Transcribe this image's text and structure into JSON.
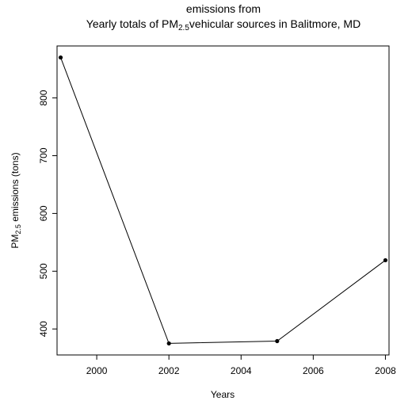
{
  "chart_data": {
    "type": "line",
    "title_line1": "emissions from",
    "title_line2_prefix": "Yearly totals of PM",
    "title_line2_sub": "2.5",
    "title_line2_suffix": "vehicular sources in Balitmore, MD",
    "xlabel": "Years",
    "ylabel_prefix": "PM",
    "ylabel_sub": "2.5",
    "ylabel_suffix": " emissions (tons)",
    "x": [
      1999,
      2002,
      2005,
      2008
    ],
    "y": [
      870,
      375,
      379,
      519
    ],
    "xlim": [
      1998.9,
      2008.1
    ],
    "ylim": [
      355,
      890
    ],
    "xticks": [
      2000,
      2002,
      2004,
      2006,
      2008
    ],
    "yticks": [
      400,
      500,
      600,
      700,
      800
    ],
    "xtick_labels": [
      "2000",
      "2002",
      "2004",
      "2006",
      "2008"
    ],
    "ytick_labels": [
      "400",
      "500",
      "600",
      "700",
      "800"
    ],
    "line_color": "#000000",
    "point_color": "#000000",
    "grid": false,
    "legend": "none"
  }
}
